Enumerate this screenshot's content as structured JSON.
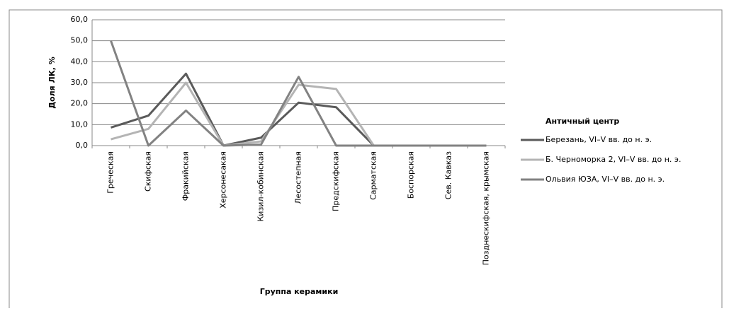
{
  "chart_data": {
    "type": "line",
    "x_label": "Группа керамики",
    "y_label": "Доля ЛК, %",
    "legend_title": "Античный центр",
    "legend": "right",
    "grid": true,
    "categories": [
      "Греческая",
      "Скифская",
      "Фракийская",
      "Херсонесакая",
      "Кизил-кобинская",
      "Лесостепная",
      "Предскифская",
      "Сарматская",
      "Боспорская",
      "Сев. Кавказ",
      "Позднескифская, крымская"
    ],
    "series": [
      {
        "name": "Березань, VI–V вв. до н. э.",
        "color": "#5a5a5a",
        "values": [
          8.6,
          14.3,
          34.3,
          0,
          3.8,
          20.5,
          18.3,
          0,
          0,
          0,
          0
        ]
      },
      {
        "name": "Б. Черноморка 2, VI–V вв. до н. э.",
        "color": "#b4b4b4",
        "values": [
          3.0,
          8.0,
          30.0,
          0,
          2.0,
          29.0,
          27.0,
          0,
          0,
          0,
          0
        ]
      },
      {
        "name": "Ольвия ЮЗА, VI–V вв. до н. э.",
        "color": "#828282",
        "values": [
          50.0,
          0,
          16.7,
          0,
          0.5,
          32.8,
          0,
          0,
          0,
          0,
          0
        ]
      }
    ],
    "ylim": [
      0,
      60
    ],
    "yticks": [
      {
        "value": 0,
        "label": "0,0"
      },
      {
        "value": 10,
        "label": "10,0"
      },
      {
        "value": 20,
        "label": "20,0"
      },
      {
        "value": 30,
        "label": "30,0"
      },
      {
        "value": 40,
        "label": "40,0"
      },
      {
        "value": 50,
        "label": "50,0"
      },
      {
        "value": 60,
        "label": "60,0"
      }
    ]
  }
}
